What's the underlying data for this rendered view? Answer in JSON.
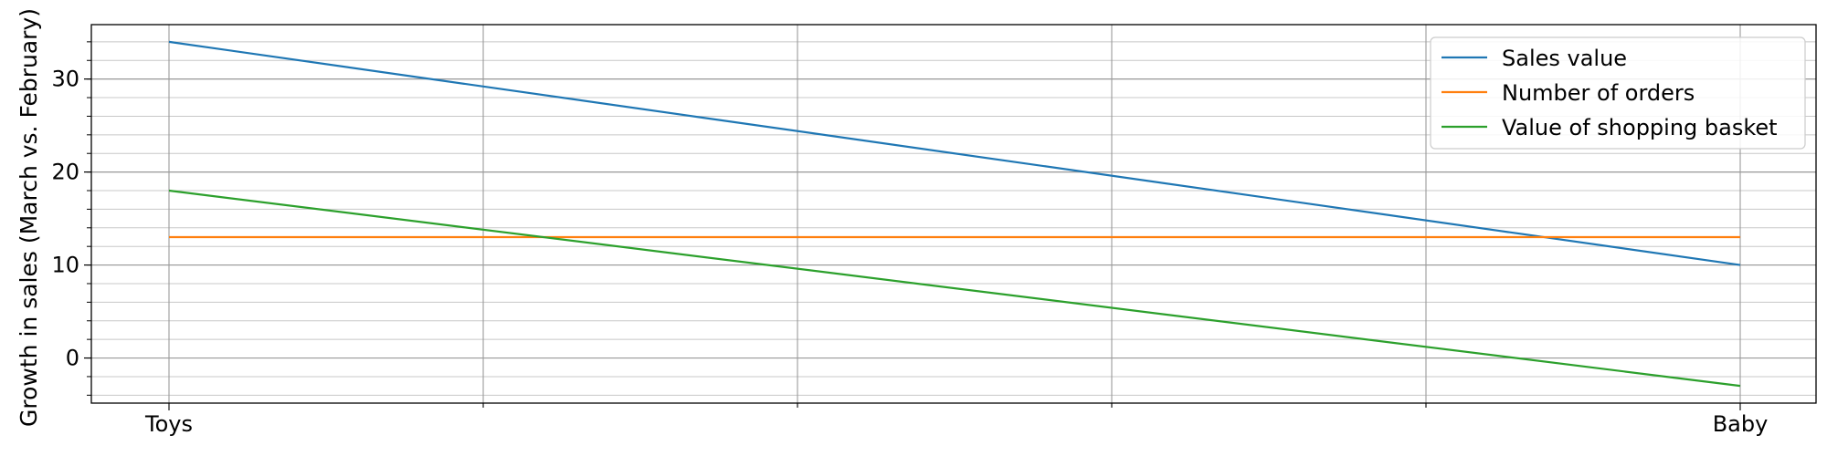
{
  "chart_data": {
    "type": "line",
    "categories": [
      "Toys",
      "Baby"
    ],
    "series": [
      {
        "name": "Sales value",
        "values": [
          34,
          10
        ],
        "color": "#1f77b4"
      },
      {
        "name": "Number of orders",
        "values": [
          13,
          13
        ],
        "color": "#ff7f0e"
      },
      {
        "name": "Value of shopping basket",
        "values": [
          18,
          -3
        ],
        "color": "#2ca02c"
      }
    ],
    "xlabel": "",
    "ylabel": "Growth in sales (March vs. February)",
    "ylim": [
      -4.85,
      35.85
    ],
    "y_major_ticks": [
      0,
      10,
      20,
      30
    ],
    "y_minor_step": 2,
    "x_minor_divisions": 5,
    "grid": true,
    "legend_position": "top-right"
  }
}
